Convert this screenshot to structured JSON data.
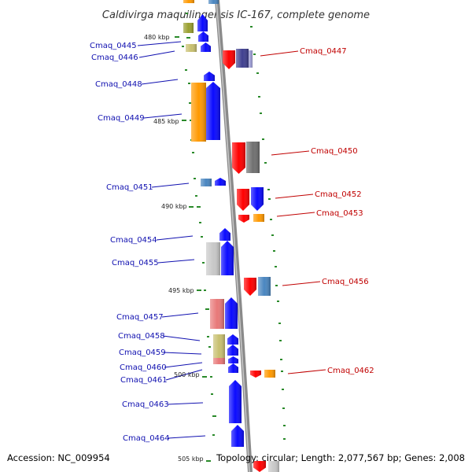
{
  "title": "Caldivirga maquilingensis IC-167, complete genome",
  "footer": {
    "accession": "Accession: NC_009954",
    "summary": "Topology: circular; Length: 2,077,567 bp; Genes: 2,008"
  },
  "colors": {
    "backbone": "#8a8a8a",
    "left_label": "#1010b0",
    "right_label": "#c00000",
    "tick": "#2a8a2a",
    "blue": "#0a0aff",
    "red": "#ff0000",
    "orange": "#ff9900",
    "olive": "#9aa030",
    "khaki": "#c8c070",
    "navy": "#404090",
    "gray": "#707070",
    "steel": "#4a86c0",
    "silver": "#c8c8c8",
    "pink": "#e87878"
  },
  "scale_labels": [
    "480 kbp",
    "485 kbp",
    "490 kbp",
    "495 kbp",
    "500 kbp",
    "505 kbp"
  ],
  "left_genes": [
    {
      "name": "Cmaq_0445",
      "color": "blue"
    },
    {
      "name": "Cmaq_0446",
      "color": "khaki"
    },
    {
      "name": "Cmaq_0448",
      "color": "blue"
    },
    {
      "name": "Cmaq_0449",
      "color": "orange"
    },
    {
      "name": "Cmaq_0451",
      "color": "steel"
    },
    {
      "name": "Cmaq_0454",
      "color": "blue"
    },
    {
      "name": "Cmaq_0455",
      "color": "silver"
    },
    {
      "name": "Cmaq_0457",
      "color": "pink"
    },
    {
      "name": "Cmaq_0458",
      "color": "khaki"
    },
    {
      "name": "Cmaq_0459",
      "color": "blue"
    },
    {
      "name": "Cmaq_0460",
      "color": "blue"
    },
    {
      "name": "Cmaq_0461",
      "color": "blue"
    },
    {
      "name": "Cmaq_0463",
      "color": "blue"
    },
    {
      "name": "Cmaq_0464",
      "color": "blue"
    }
  ],
  "right_genes": [
    {
      "name": "Cmaq_0447",
      "color": "red"
    },
    {
      "name": "Cmaq_0450",
      "color": "red"
    },
    {
      "name": "Cmaq_0452",
      "color": "red"
    },
    {
      "name": "Cmaq_0453",
      "color": "orange"
    },
    {
      "name": "Cmaq_0456",
      "color": "steel"
    },
    {
      "name": "Cmaq_0462",
      "color": "orange"
    }
  ]
}
